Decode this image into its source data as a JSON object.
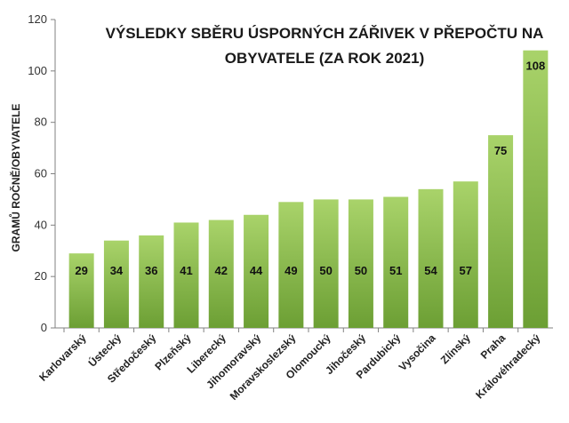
{
  "chart_data": {
    "type": "bar",
    "title_lines": [
      "VÝSLEDKY SBĚRU ÚSPORNÝCH ZÁŘIVEK V PŘEPOČTU NA",
      "OBYVATELE (ZA ROK 2021)"
    ],
    "ylabel": "GRAMŮ ROČNĚ/OBYVATELE",
    "xlabel": "",
    "ylim": [
      0,
      120
    ],
    "yticks": [
      0,
      20,
      40,
      60,
      80,
      100,
      120
    ],
    "grid": false,
    "categories": [
      "Karlovarský",
      "Ústecký",
      "Středočeský",
      "Plzeňský",
      "Liberecký",
      "Jihomoravský",
      "Moravskoslezský",
      "Olomoucký",
      "Jihočeský",
      "Pardubický",
      "Vysočina",
      "Zlínský",
      "Praha",
      "Královéhradecký"
    ],
    "values": [
      29,
      34,
      36,
      41,
      42,
      44,
      49,
      50,
      50,
      51,
      54,
      57,
      75,
      108
    ],
    "colors": {
      "bar_light": "#a9d36a",
      "bar_dark": "#6c9f34",
      "axis": "#808080"
    }
  }
}
